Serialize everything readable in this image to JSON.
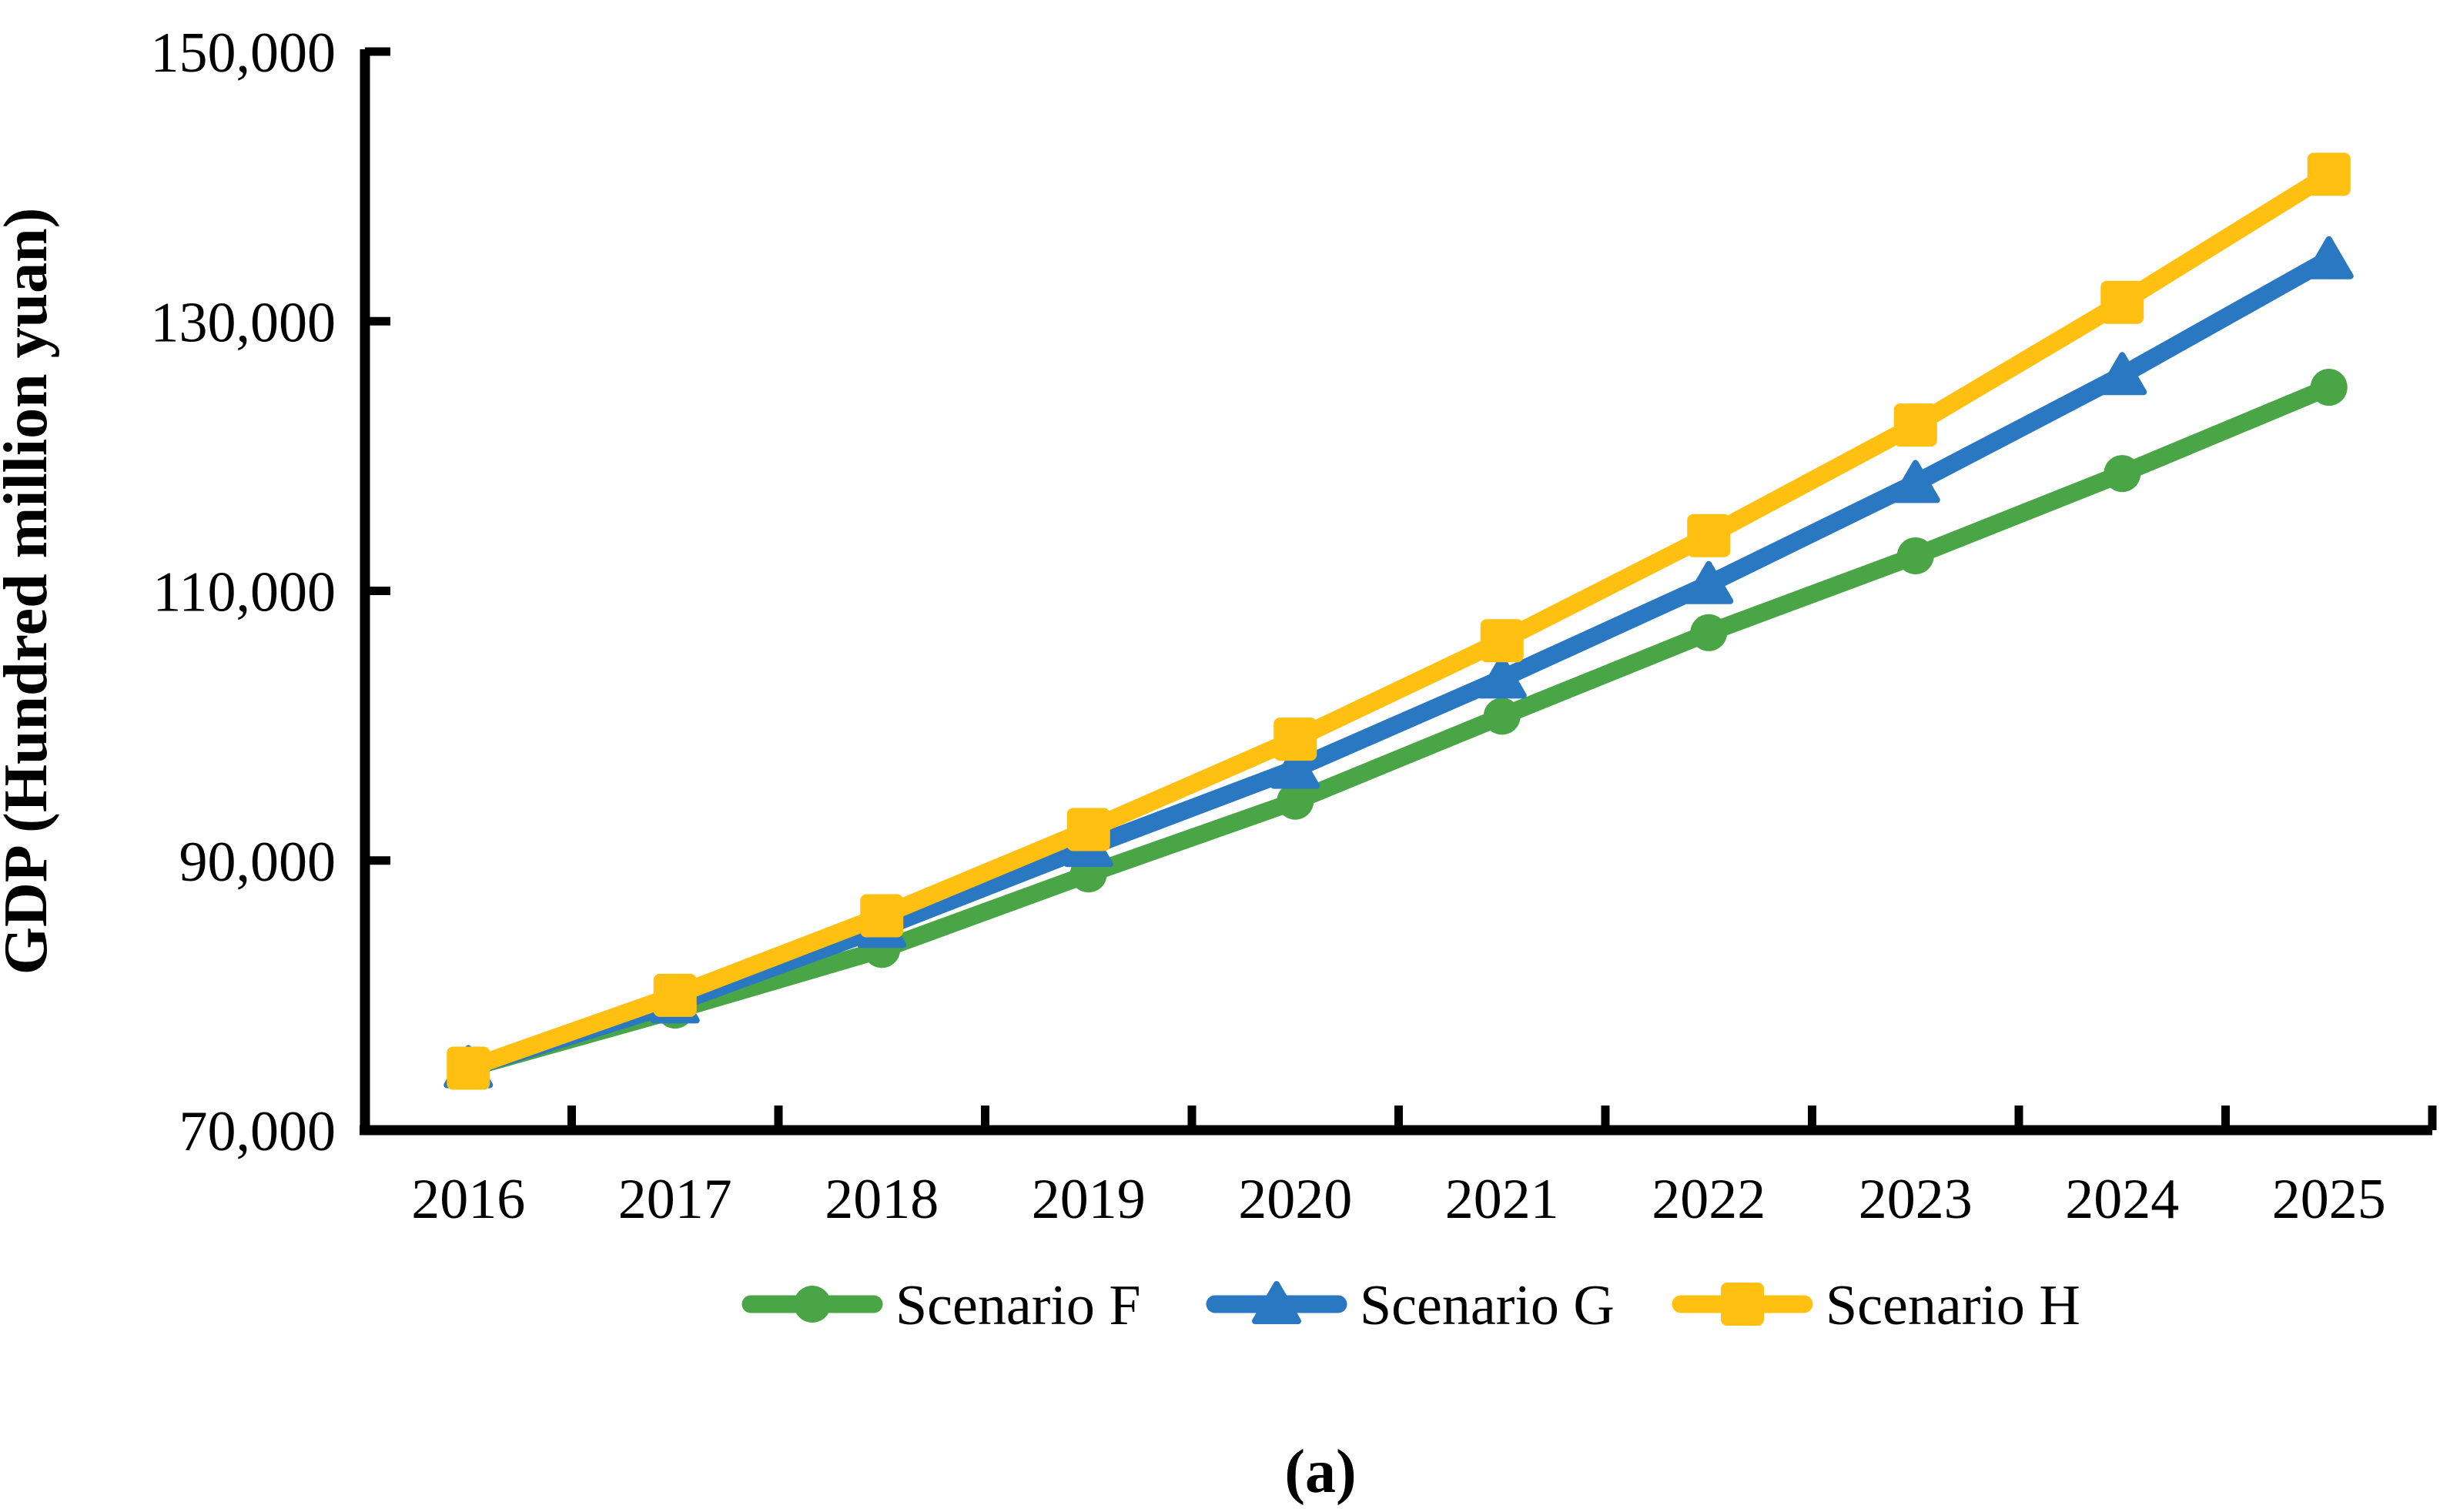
{
  "figure": {
    "caption": "(a)"
  },
  "chart_data": {
    "type": "line",
    "title": "",
    "xlabel": "",
    "ylabel": "GDP (Hundred million yuan)",
    "categories": [
      "2016",
      "2017",
      "2018",
      "2019",
      "2020",
      "2021",
      "2022",
      "2023",
      "2024",
      "2025"
    ],
    "y_axis": {
      "min": 70000,
      "max": 150000,
      "tick_step": 20000,
      "tick_values": [
        70000,
        90000,
        110000,
        130000,
        150000
      ],
      "tick_labels": [
        "70,000",
        "90,000",
        "110,000",
        "130,000",
        "150,000"
      ]
    },
    "grid": false,
    "legend_position": "bottom",
    "series": [
      {
        "name": "Scenario F",
        "marker": "circle",
        "color": "#4aa546",
        "values": [
          74600,
          78900,
          83400,
          89000,
          94400,
          100700,
          106900,
          112600,
          118700,
          125100
        ]
      },
      {
        "name": "Scenario G",
        "marker": "triangle",
        "color": "#2a78c2",
        "values": [
          74600,
          79400,
          85000,
          91000,
          96800,
          103500,
          110500,
          118000,
          126000,
          134600
        ]
      },
      {
        "name": "Scenario H",
        "marker": "square",
        "color": "#ffc011",
        "values": [
          74600,
          80000,
          85900,
          92300,
          99000,
          106300,
          114100,
          122300,
          131400,
          140900
        ]
      }
    ],
    "colors": {
      "axis": "#000000",
      "text": "#000000",
      "background": "#ffffff"
    }
  }
}
